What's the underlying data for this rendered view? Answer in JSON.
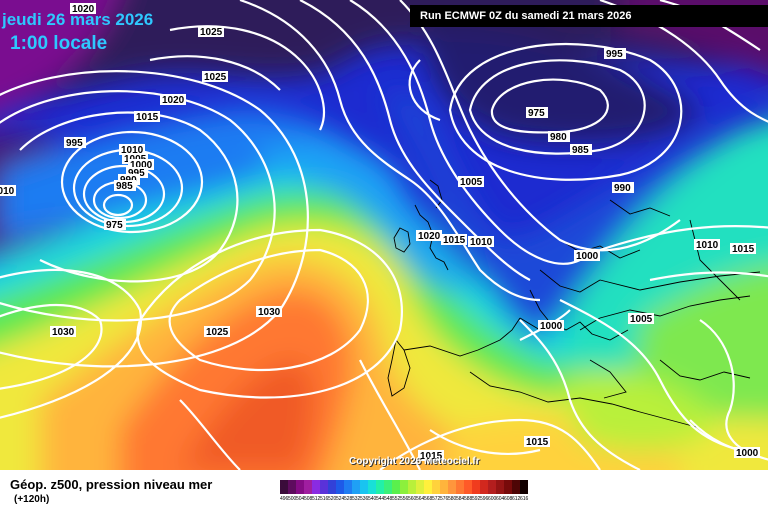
{
  "header": {
    "date": "jeudi 26 mars 2026",
    "local_time": "1:00 locale",
    "run": "Run ECMWF 0Z du samedi 21 mars 2026"
  },
  "copyright": "Copyright 2026 Meteociel.fr",
  "footer": {
    "field_title": "Géop. z500, pression niveau mer",
    "lead_time": "(+120h)"
  },
  "isobar_labels": [
    "1020",
    "1025",
    "1025",
    "1020",
    "1015",
    "995",
    "1010",
    "1005",
    "1000",
    "995",
    "990",
    "985",
    "975",
    "1010",
    "1030",
    "1025",
    "1030",
    "1005",
    "1020",
    "1015",
    "1010",
    "975",
    "980",
    "985",
    "995",
    "990",
    "1000",
    "1010",
    "1015",
    "1005",
    "1000",
    "1015",
    "1015",
    "1000"
  ],
  "legend": {
    "values": [
      "496",
      "500",
      "504",
      "508",
      "512",
      "516",
      "520",
      "524",
      "528",
      "532",
      "536",
      "540",
      "544",
      "548",
      "552",
      "556",
      "560",
      "564",
      "568",
      "572",
      "576",
      "580",
      "584",
      "588",
      "592",
      "596",
      "600",
      "604",
      "608",
      "612",
      "616"
    ],
    "colors": [
      "#3a0c3a",
      "#5e0c5e",
      "#850c85",
      "#a01ea0",
      "#8a2be2",
      "#5a32d9",
      "#3241d8",
      "#1e5ae8",
      "#1f7cf2",
      "#1fa0f5",
      "#19c4f0",
      "#18e0d8",
      "#22f0a8",
      "#3af07a",
      "#5af04c",
      "#8cf03c",
      "#b9f03a",
      "#def03c",
      "#fff03c",
      "#ffd23c",
      "#ffb43c",
      "#ff963c",
      "#ff7832",
      "#ff5a28",
      "#f03c1e",
      "#d2281e",
      "#b41e1e",
      "#961414",
      "#780a0a",
      "#4e0505",
      "#120000"
    ]
  }
}
